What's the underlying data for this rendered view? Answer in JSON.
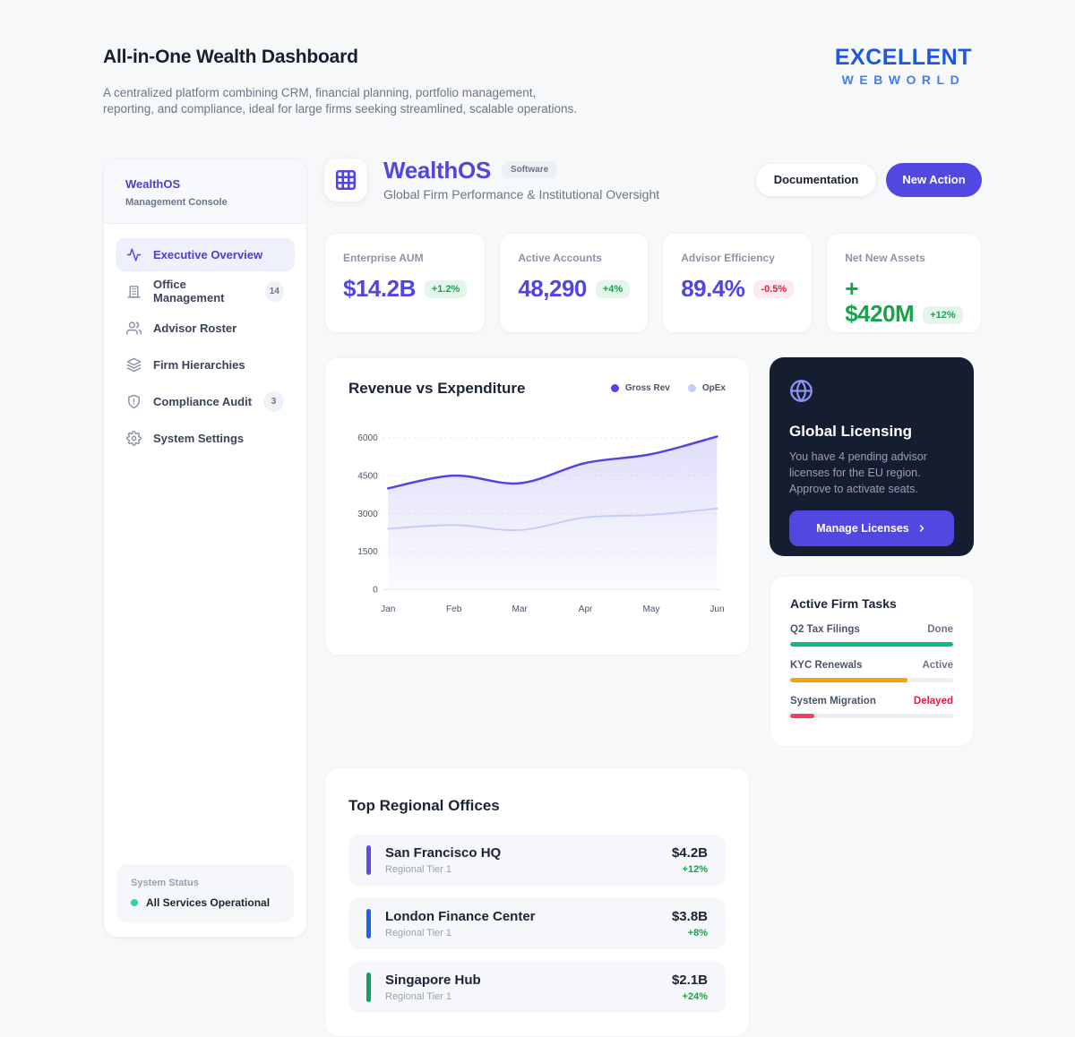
{
  "page": {
    "title": "All-in-One Wealth Dashboard",
    "subtitle_line1": "A centralized platform combining CRM, financial planning, portfolio management,",
    "subtitle_line2": "reporting, and compliance, ideal for large firms seeking streamlined, scalable operations.",
    "brand": {
      "line1": "EXCELLENT",
      "line2": "WEBWORLD"
    }
  },
  "sidebar": {
    "app_name": "WealthOS",
    "app_subtitle": "Management Console",
    "items": [
      {
        "label": "Executive Overview",
        "icon": "activity-icon",
        "active": true
      },
      {
        "label": "Office Management",
        "icon": "building-icon",
        "badge": "14"
      },
      {
        "label": "Advisor Roster",
        "icon": "users-icon"
      },
      {
        "label": "Firm Hierarchies",
        "icon": "layers-icon"
      },
      {
        "label": "Compliance Audit",
        "icon": "shield-icon",
        "badge": "3"
      },
      {
        "label": "System Settings",
        "icon": "gear-icon"
      }
    ],
    "status": {
      "label": "System Status",
      "value": "All Services Operational",
      "dot_color": "#34d399"
    }
  },
  "header": {
    "app_name": "WealthOS",
    "badge": "Software",
    "subtitle": "Global Firm Performance & Institutional Oversight",
    "documentation_label": "Documentation",
    "new_action_label": "New Action",
    "accent_color": "#5246e0"
  },
  "kpis": [
    {
      "label": "Enterprise AUM",
      "value": "$14.2B",
      "value_color": "#5246e0",
      "delta": "+1.2%",
      "delta_color": "#16a34a",
      "delta_bg": "#e4f6ec"
    },
    {
      "label": "Active Accounts",
      "value": "48,290",
      "value_color": "#5246e0",
      "delta": "+4%",
      "delta_color": "#16a34a",
      "delta_bg": "#e4f6ec"
    },
    {
      "label": "Advisor Efficiency",
      "value": "89.4%",
      "value_color": "#5246e0",
      "delta": "-0.5%",
      "delta_color": "#e11d48",
      "delta_bg": "#fdeaef"
    },
    {
      "label": "Net New Assets",
      "value": "+\n$420M",
      "value_color": "#16a34a",
      "delta": "+12%",
      "delta_color": "#16a34a",
      "delta_bg": "#e4f6ec"
    }
  ],
  "chart_data": {
    "type": "area",
    "title": "Revenue vs Expenditure",
    "x": [
      "Jan",
      "Feb",
      "Mar",
      "Apr",
      "May",
      "Jun"
    ],
    "series": [
      {
        "name": "Gross Rev",
        "color": "#5246e0",
        "fill": true,
        "values": [
          4000,
          4500,
          4200,
          5000,
          5350,
          6050
        ]
      },
      {
        "name": "OpEx",
        "color": "#c3cdf5",
        "fill": false,
        "values": [
          2400,
          2550,
          2350,
          2850,
          2950,
          3200
        ]
      }
    ],
    "y_ticks": [
      0,
      1500,
      3000,
      4500,
      6000
    ],
    "ylim": [
      0,
      6400
    ],
    "grid": "dashed-horizontal",
    "legend_position": "top-right"
  },
  "licensing": {
    "title": "Global Licensing",
    "body": "You have 4 pending advisor licenses for the EU region. Approve to activate seats.",
    "button_label": "Manage Licenses",
    "card_bg": "#151d31",
    "icon_color": "#8a93f8"
  },
  "tasks": {
    "title": "Active Firm Tasks",
    "rows": [
      {
        "label": "Q2 Tax Filings",
        "status": "Done",
        "status_color": "#6b7687",
        "progress_pct": 100,
        "bar_color": "#10b981"
      },
      {
        "label": "KYC Renewals",
        "status": "Active",
        "status_color": "#6b7687",
        "progress_pct": 72,
        "bar_color": "#f5a30b"
      },
      {
        "label": "System Migration",
        "status": "Delayed",
        "status_color": "#e11d48",
        "progress_pct": 15,
        "bar_color": "#f43f5e"
      }
    ]
  },
  "offices": {
    "title": "Top Regional Offices",
    "rows": [
      {
        "name": "San Francisco HQ",
        "tier": "Regional Tier 1",
        "value": "$4.2B",
        "change": "+12%",
        "bar_color": "#5b4ce6"
      },
      {
        "name": "London Finance Center",
        "tier": "Regional Tier 1",
        "value": "$3.8B",
        "change": "+8%",
        "bar_color": "#1c64e8"
      },
      {
        "name": "Singapore Hub",
        "tier": "Regional Tier 1",
        "value": "$2.1B",
        "change": "+24%",
        "bar_color": "#0da363"
      }
    ]
  }
}
